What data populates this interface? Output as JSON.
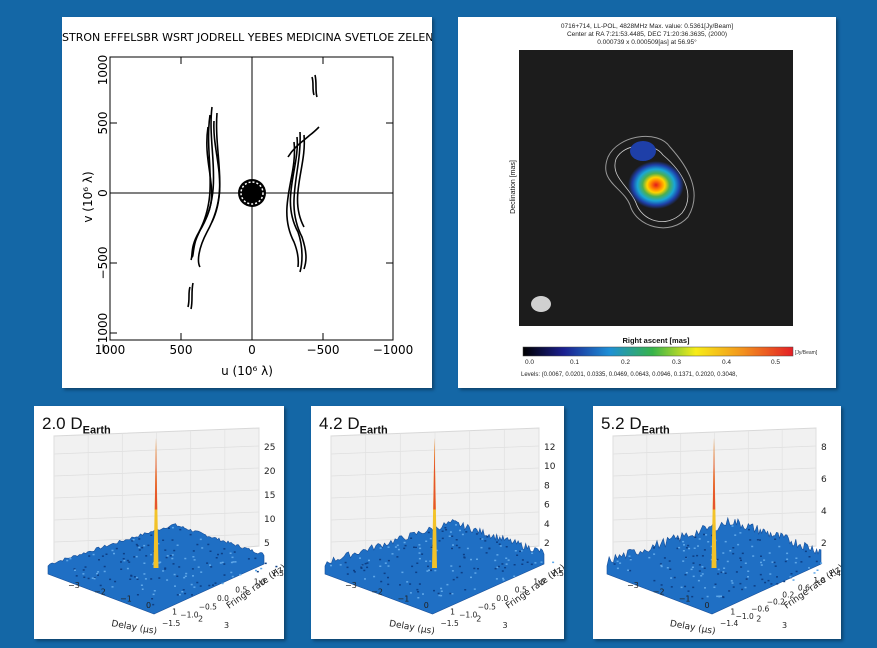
{
  "uv_plot": {
    "stations": "STRON EFFELSBR WSRT JODRELL YEBES MEDICINA SVETLOE ZELENCHK BA",
    "xlabel": "u  (10⁶ λ)",
    "ylabel": "v  (10⁶ λ)",
    "xticks": [
      "1000",
      "500",
      "0",
      "−500",
      "−1000"
    ],
    "yticks": [
      "1000",
      "500",
      "0",
      "−500",
      "−1000"
    ]
  },
  "image_map": {
    "header_line1": "0716+714, LL-POL, 4828MHz Max. value: 0.5361[Jy/Beam]",
    "header_line2": "Center at RA 7:21:53.4485, DEC 71:20:36.3635, (2000)",
    "header_line3": "0.000739 x 0.000509[as] at 56.95°",
    "ylabel": "Declination [mas]",
    "xlabel": "Right ascent [mas]",
    "colorbar_unit": "[Jy/Beam]",
    "colorbar_ticks": [
      "0.0",
      "0.1",
      "0.2",
      "0.3",
      "0.4",
      "0.5"
    ],
    "levels": "Levels: (0.0067, 0.0201, 0.0335, 0.0469, 0.0643, 0.0946, 0.1371, 0.2020, 0.3048,"
  },
  "fringe_panels": [
    {
      "title": "2.0 D",
      "subscript": "Earth",
      "zticks": [
        "25",
        "20",
        "15",
        "10",
        "5"
      ],
      "xlabel": "Delay (μs)",
      "ylabel": "Fringe rate (Hz)",
      "xticks": [
        "−3",
        "−2",
        "−1",
        "0",
        "1",
        "2",
        "3"
      ],
      "yticks": [
        "−1.5",
        "−1.0",
        "−0.5",
        "0.0",
        "0.5",
        "1.0",
        "1.5"
      ],
      "peak_height": 25
    },
    {
      "title": "4.2 D",
      "subscript": "Earth",
      "zticks": [
        "12",
        "10",
        "8",
        "6",
        "4",
        "2"
      ],
      "xlabel": "Delay (μs)",
      "ylabel": "Fringe rate (Hz)",
      "xticks": [
        "−3",
        "−2",
        "−1",
        "0",
        "1",
        "2",
        "3"
      ],
      "yticks": [
        "−1.5",
        "−1.0",
        "−0.5",
        "0.0",
        "0.5",
        "1.0",
        "1.5"
      ],
      "peak_height": 12
    },
    {
      "title": "5.2 D",
      "subscript": "Earth",
      "zticks": [
        "8",
        "6",
        "4",
        "2"
      ],
      "xlabel": "Delay (μs)",
      "ylabel": "Fringe rate (Hz)",
      "xticks": [
        "−3",
        "−2",
        "−1",
        "0",
        "1",
        "2",
        "3"
      ],
      "yticks": [
        "−1.4",
        "−1.0",
        "−0.6",
        "−0.2",
        "0.2",
        "0.6",
        "1.0",
        "1.4"
      ],
      "peak_height": 8
    }
  ],
  "colors": {
    "background": "#1467a6",
    "surface": "#1f6fc4",
    "peak": "#e6532c"
  }
}
